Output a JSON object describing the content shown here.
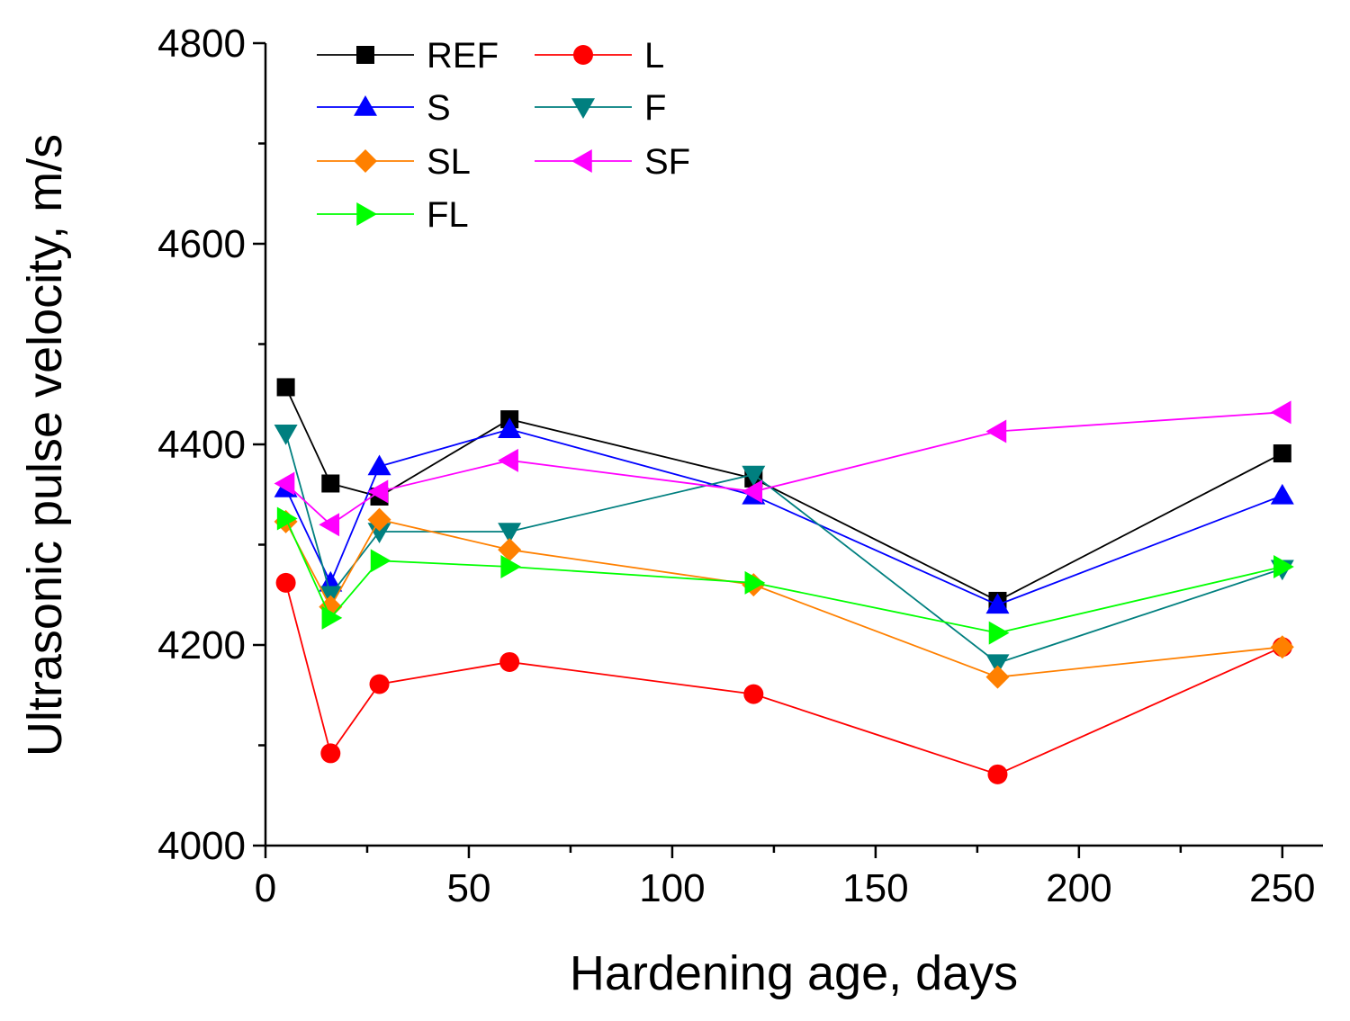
{
  "chart_data": {
    "type": "line",
    "title": "",
    "xlabel": "Hardening age, days",
    "ylabel": "Ultrasonic pulse velocity, m/s",
    "xlim": [
      0,
      260
    ],
    "ylim": [
      4000,
      4800
    ],
    "x_ticks": [
      0,
      50,
      100,
      150,
      200,
      250
    ],
    "y_ticks": [
      4000,
      4200,
      4400,
      4600,
      4800
    ],
    "x_tick_labels": [
      "0",
      "50",
      "100",
      "150",
      "200",
      "250"
    ],
    "y_tick_labels": [
      "4000",
      "4200",
      "4400",
      "4600",
      "4800"
    ],
    "grid": false,
    "legend_position": "top-left",
    "x": [
      5,
      16,
      28,
      60,
      120,
      180,
      250
    ],
    "series": [
      {
        "name": "REF",
        "color": "#000000",
        "marker": "square",
        "values": [
          4457,
          4361,
          4348,
          4425,
          4366,
          4244,
          4391
        ]
      },
      {
        "name": "L",
        "color": "#ff0000",
        "marker": "circle",
        "values": [
          4262,
          4092,
          4161,
          4183,
          4151,
          4071,
          4198
        ]
      },
      {
        "name": "S",
        "color": "#0000ff",
        "marker": "triangle-up",
        "values": [
          4356,
          4262,
          4378,
          4415,
          4349,
          4240,
          4349
        ]
      },
      {
        "name": "F",
        "color": "#007f7f",
        "marker": "triangle-down",
        "values": [
          4411,
          4250,
          4313,
          4313,
          4370,
          4182,
          4276
        ]
      },
      {
        "name": "SL",
        "color": "#ff8000",
        "marker": "diamond",
        "values": [
          4323,
          4238,
          4325,
          4295,
          4260,
          4168,
          4198
        ]
      },
      {
        "name": "SF",
        "color": "#ff00ff",
        "marker": "triangle-left",
        "values": [
          4361,
          4320,
          4353,
          4384,
          4353,
          4413,
          4432
        ]
      },
      {
        "name": "FL",
        "color": "#00ff00",
        "marker": "triangle-right",
        "values": [
          4326,
          4227,
          4284,
          4278,
          4262,
          4212,
          4278
        ]
      }
    ]
  }
}
